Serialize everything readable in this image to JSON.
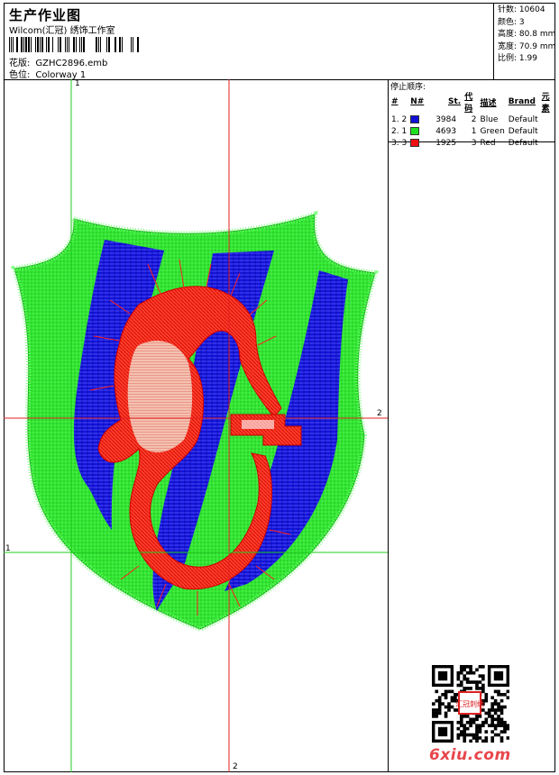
{
  "header": {
    "title": "生产作业图",
    "software": "Wilcom(汇冠) 绣饰工作室",
    "design_label": "花版:",
    "design_value": "GZHC2896.emb",
    "colorway_label": "色位:",
    "colorway_value": "Colorway 1"
  },
  "stats": [
    {
      "label": "针数:",
      "value": "10604"
    },
    {
      "label": "颜色:",
      "value": "3"
    },
    {
      "label": "高度:",
      "value": "80.8 mm"
    },
    {
      "label": "宽度:",
      "value": "70.9 mm"
    },
    {
      "label": "比例:",
      "value": "1.99"
    }
  ],
  "stop_sequence": {
    "title": "停止顺序:",
    "columns": [
      "#",
      "N#",
      "St.",
      "代码",
      "描述",
      "Brand",
      "元素"
    ],
    "rows": [
      {
        "order": "1. 2",
        "color": "#1010d8",
        "stitches": "3984",
        "code": "2",
        "description": "Blue",
        "brand": "Default"
      },
      {
        "order": "2. 1",
        "color": "#1ee01e",
        "stitches": "4693",
        "code": "1",
        "description": "Green",
        "brand": "Default"
      },
      {
        "order": "3. 3",
        "color": "#ee1010",
        "stitches": "1925",
        "code": "3",
        "description": "Red",
        "brand": "Default"
      }
    ]
  },
  "guides": {
    "top_v": "1",
    "right_h": "2",
    "left_h": "1",
    "bottom_v": "2"
  },
  "watermark": "6xiu.com",
  "qr_stamp_text": "汇冠刺绣"
}
